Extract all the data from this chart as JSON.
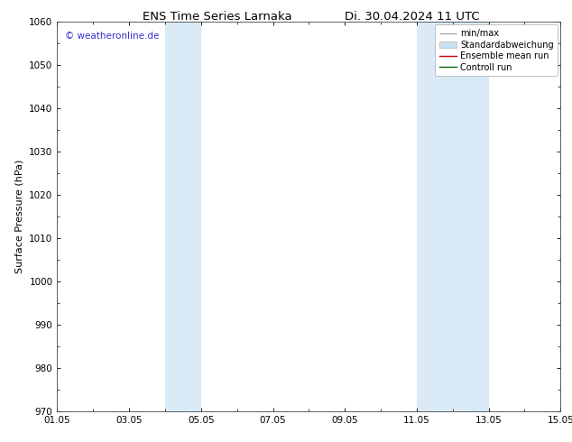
{
  "title_left": "ENS Time Series Larnaka",
  "title_right": "Di. 30.04.2024 11 UTC",
  "ylabel": "Surface Pressure (hPa)",
  "ylim": [
    970,
    1060
  ],
  "yticks": [
    970,
    980,
    990,
    1000,
    1010,
    1020,
    1030,
    1040,
    1050,
    1060
  ],
  "xlim": [
    0,
    14
  ],
  "xtick_labels": [
    "01.05",
    "03.05",
    "05.05",
    "07.05",
    "09.05",
    "11.05",
    "13.05",
    "15.05"
  ],
  "xtick_positions": [
    0,
    2,
    4,
    6,
    8,
    10,
    12,
    14
  ],
  "shaded_bands": [
    {
      "x_start": 3.0,
      "x_end": 4.0,
      "color": "#daeaf6"
    },
    {
      "x_start": 10.0,
      "x_end": 12.0,
      "color": "#daeaf6"
    }
  ],
  "watermark": "© weatheronline.de",
  "watermark_color": "#3333cc",
  "legend_labels": [
    "min/max",
    "Standardabweichung",
    "Ensemble mean run",
    "Controll run"
  ],
  "legend_colors_line": [
    "#aaaaaa",
    "#c8dff0",
    "#cc0000",
    "#006600"
  ],
  "bg_color": "#ffffff",
  "grid_color": "#dddddd",
  "spine_color": "#444444",
  "title_fontsize": 9.5,
  "tick_fontsize": 7.5,
  "ylabel_fontsize": 8,
  "watermark_fontsize": 7.5,
  "legend_fontsize": 7
}
